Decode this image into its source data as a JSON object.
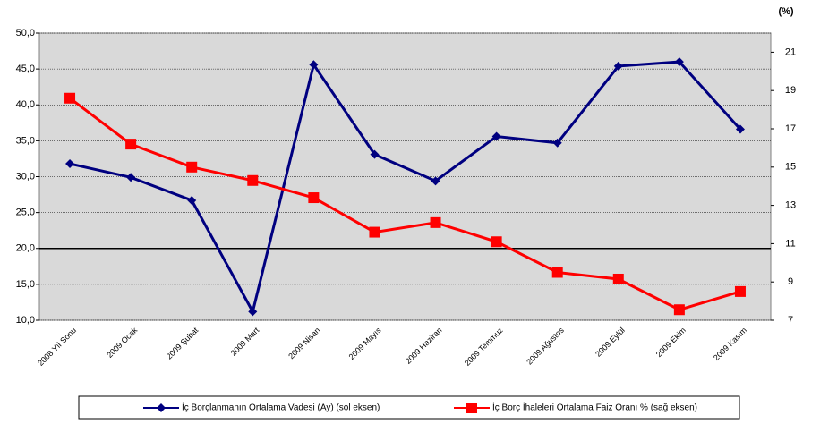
{
  "chart_data": {
    "type": "line",
    "y2_unit": "(%)",
    "categories": [
      "2008 Yıl Sonu",
      "2009 Ocak",
      "2009 Şubat",
      "2009 Mart",
      "2009 Nisan",
      "2009 Mayıs",
      "2009 Haziran",
      "2009 Temmuz",
      "2009 Ağustos",
      "2009 Eylül",
      "2009 Ekim",
      "2009 Kasım"
    ],
    "series": [
      {
        "name": "İç Borçlanmanın Ortalama Vadesi (Ay) (sol eksen)",
        "color": "#000080",
        "marker": "diamond",
        "values": [
          31.8,
          29.9,
          26.7,
          11.2,
          45.6,
          33.1,
          29.4,
          35.6,
          34.7,
          45.4,
          46.0,
          36.6
        ]
      },
      {
        "name": "İç Borç İhaleleri Ortalama Faiz Oranı %  (sağ eksen)",
        "color": "#ff0000",
        "marker": "square",
        "axis": "y2",
        "values": [
          18.6,
          16.2,
          15.0,
          14.3,
          13.4,
          11.6,
          12.1,
          11.1,
          9.5,
          9.15,
          7.55,
          8.5
        ]
      }
    ],
    "ylim": [
      10,
      50
    ],
    "yticks": [
      {
        "value": 10,
        "label": "10,0"
      },
      {
        "value": 15,
        "label": "15,0"
      },
      {
        "value": 20,
        "label": "20,0"
      },
      {
        "value": 25,
        "label": "25,0"
      },
      {
        "value": 30,
        "label": "30,0"
      },
      {
        "value": 35,
        "label": "35,0"
      },
      {
        "value": 40,
        "label": "40,0"
      },
      {
        "value": 45,
        "label": "45,0"
      },
      {
        "value": 50,
        "label": "50,0"
      }
    ],
    "y2lim": [
      7,
      22
    ],
    "y2ticks": [
      7,
      9,
      11,
      13,
      15,
      17,
      19,
      21
    ],
    "category_axis_crosses": 20,
    "grid": true,
    "legend": "bottom"
  }
}
